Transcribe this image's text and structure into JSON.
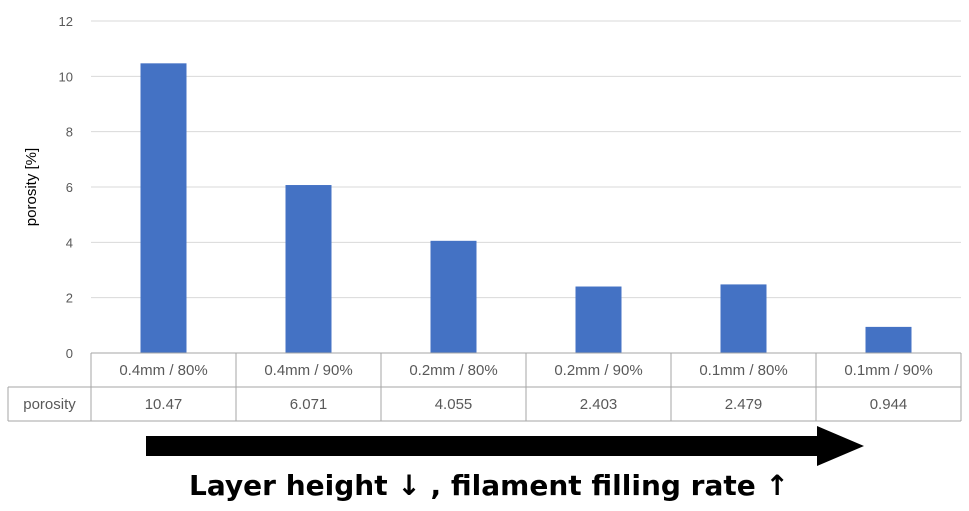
{
  "chart_data": {
    "type": "bar",
    "categories": [
      "0.4mm / 80%",
      "0.4mm / 90%",
      "0.2mm / 80%",
      "0.2mm / 90%",
      "0.1mm / 80%",
      "0.1mm / 90%"
    ],
    "series": [
      {
        "name": "porosity",
        "values": [
          10.47,
          6.071,
          4.055,
          2.403,
          2.479,
          0.944
        ]
      }
    ],
    "value_labels": [
      "10.47",
      "6.071",
      "4.055",
      "2.403",
      "2.479",
      "0.944"
    ],
    "ylabel": "porosity [%]",
    "xlabel": "",
    "ylim": [
      0,
      12
    ],
    "yticks": [
      0,
      2,
      4,
      6,
      8,
      10,
      12
    ],
    "grid": true,
    "data_table": true,
    "bar_color": "#4472C4",
    "grid_color": "#D9D9D9",
    "table_border_color": "#A6A6A6"
  },
  "caption": {
    "text": "Layer height ↓ , filament filling rate ↑",
    "arrow_color": "#000000"
  }
}
